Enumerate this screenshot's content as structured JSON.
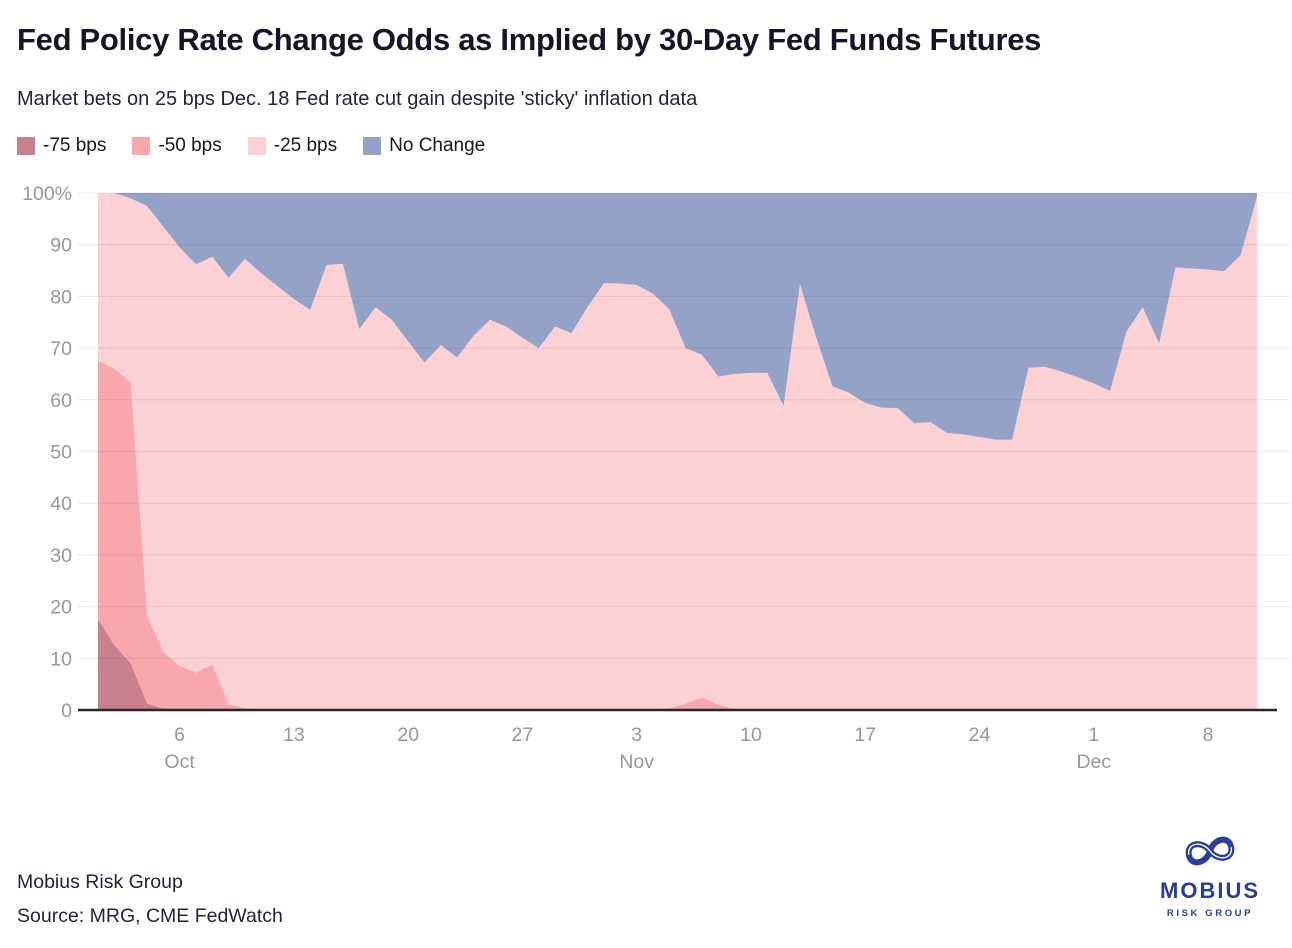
{
  "header": {
    "title": "Fed Policy Rate Change Odds as Implied by 30-Day Fed Funds Futures",
    "subtitle": "Market bets on 25 bps Dec. 18 Fed rate cut gain despite 'sticky' inflation data"
  },
  "legend": {
    "position": "top-left",
    "items": [
      {
        "label": "-75 bps",
        "color": "#c8808f"
      },
      {
        "label": "-50 bps",
        "color": "#f8a7ac"
      },
      {
        "label": "-25 bps",
        "color": "#fcd1d4"
      },
      {
        "label": "No Change",
        "color": "#94a2c8"
      }
    ]
  },
  "chart_data": {
    "type": "area",
    "stacked": true,
    "title": "Fed Policy Rate Change Odds as Implied by 30-Day Fed Funds Futures",
    "xlabel": "",
    "ylabel": "",
    "ylim": [
      0,
      100
    ],
    "grid": true,
    "legend_position": "top-left",
    "y_ticks": [
      0,
      10,
      20,
      30,
      40,
      50,
      60,
      70,
      80,
      90,
      100
    ],
    "y_top_tick_label": "100%",
    "x_dates": [
      "Oct 1",
      "Oct 2",
      "Oct 3",
      "Oct 4",
      "Oct 5",
      "Oct 6",
      "Oct 7",
      "Oct 8",
      "Oct 9",
      "Oct 10",
      "Oct 11",
      "Oct 12",
      "Oct 13",
      "Oct 14",
      "Oct 15",
      "Oct 16",
      "Oct 17",
      "Oct 18",
      "Oct 19",
      "Oct 20",
      "Oct 21",
      "Oct 22",
      "Oct 23",
      "Oct 24",
      "Oct 25",
      "Oct 26",
      "Oct 27",
      "Oct 28",
      "Oct 29",
      "Oct 30",
      "Oct 31",
      "Nov 1",
      "Nov 2",
      "Nov 3",
      "Nov 4",
      "Nov 5",
      "Nov 6",
      "Nov 7",
      "Nov 8",
      "Nov 9",
      "Nov 10",
      "Nov 11",
      "Nov 12",
      "Nov 13",
      "Nov 14",
      "Nov 15",
      "Nov 16",
      "Nov 17",
      "Nov 18",
      "Nov 19",
      "Nov 20",
      "Nov 21",
      "Nov 22",
      "Nov 23",
      "Nov 24",
      "Nov 25",
      "Nov 26",
      "Nov 27",
      "Nov 28",
      "Nov 29",
      "Nov 30",
      "Dec 1",
      "Dec 2",
      "Dec 3",
      "Dec 4",
      "Dec 5",
      "Dec 6",
      "Dec 7",
      "Dec 8",
      "Dec 9",
      "Dec 10",
      "Dec 11"
    ],
    "x_ticks": [
      {
        "index": 5,
        "label": "6",
        "month": "Oct"
      },
      {
        "index": 12,
        "label": "13"
      },
      {
        "index": 19,
        "label": "20"
      },
      {
        "index": 26,
        "label": "27"
      },
      {
        "index": 33,
        "label": "3",
        "month": "Nov"
      },
      {
        "index": 40,
        "label": "10"
      },
      {
        "index": 47,
        "label": "17"
      },
      {
        "index": 54,
        "label": "24"
      },
      {
        "index": 61,
        "label": "1",
        "month": "Dec"
      },
      {
        "index": 68,
        "label": "8"
      }
    ],
    "series": [
      {
        "name": "-75 bps",
        "color": "#c8808f",
        "values": [
          17.5,
          12.5,
          9,
          1.2,
          0.2,
          0,
          0,
          0,
          0,
          0,
          0,
          0,
          0,
          0,
          0,
          0,
          0,
          0,
          0,
          0,
          0,
          0,
          0,
          0,
          0,
          0,
          0,
          0,
          0,
          0,
          0,
          0,
          0,
          0,
          0,
          0,
          0,
          0,
          0,
          0,
          0,
          0,
          0,
          0,
          0,
          0,
          0,
          0,
          0,
          0,
          0,
          0,
          0,
          0,
          0,
          0,
          0,
          0,
          0,
          0,
          0,
          0,
          0,
          0,
          0,
          0,
          0,
          0,
          0,
          0,
          0,
          0
        ]
      },
      {
        "name": "-50 bps",
        "color": "#f8a7ac",
        "values": [
          50,
          53.5,
          54.5,
          17,
          11,
          8.5,
          7.2,
          8.8,
          1,
          0.3,
          0,
          0,
          0,
          0,
          0,
          0,
          0,
          0,
          0,
          0,
          0,
          0,
          0,
          0,
          0,
          0,
          0,
          0,
          0,
          0,
          0,
          0,
          0,
          0,
          0,
          0.3,
          1.2,
          2.4,
          1,
          0.2,
          0,
          0,
          0,
          0,
          0,
          0,
          0,
          0,
          0,
          0,
          0,
          0,
          0,
          0,
          0,
          0,
          0,
          0,
          0,
          0,
          0,
          0,
          0,
          0,
          0,
          0,
          0,
          0,
          0,
          0,
          0,
          0
        ]
      },
      {
        "name": "-25 bps",
        "color": "#fcd1d4",
        "values": [
          32.5,
          34,
          35.5,
          79.3,
          82.3,
          81,
          79,
          78.9,
          82.6,
          87,
          84.5,
          82,
          79.5,
          77.4,
          86.1,
          86.3,
          73.7,
          77.9,
          75.5,
          71.3,
          67.2,
          70.6,
          68.2,
          72.4,
          75.5,
          74.2,
          72,
          70,
          74.2,
          72.9,
          78,
          82.6,
          82.5,
          82.2,
          80.5,
          77.2,
          68.8,
          66.3,
          63.5,
          64.8,
          65.2,
          65.2,
          58.9,
          82.4,
          72,
          62.6,
          61.4,
          59.4,
          58.5,
          58.4,
          55.5,
          55.7,
          53.6,
          53.3,
          52.8,
          52.3,
          52.3,
          66.2,
          66.4,
          65.5,
          64.4,
          63.2,
          61.7,
          73.2,
          77.9,
          70.9,
          85.6,
          85.4,
          85.2,
          84.9,
          88,
          99.3
        ]
      },
      {
        "name": "No Change",
        "color": "#94a2c8",
        "values": [
          0,
          0,
          1,
          2.5,
          6.5,
          10.5,
          13.8,
          12.3,
          16.4,
          12.7,
          15.5,
          18,
          20.5,
          22.6,
          13.9,
          13.7,
          26.3,
          22.1,
          24.5,
          28.7,
          32.8,
          29.4,
          31.8,
          27.6,
          24.5,
          25.8,
          28,
          30,
          25.8,
          27.1,
          22,
          17.4,
          17.5,
          17.8,
          19.5,
          22.5,
          30,
          31.3,
          35.5,
          35,
          34.8,
          34.8,
          41.1,
          17.6,
          28,
          37.4,
          38.6,
          40.6,
          41.5,
          41.6,
          44.5,
          44.3,
          46.4,
          46.7,
          47.2,
          47.7,
          47.7,
          33.8,
          33.6,
          34.5,
          35.6,
          36.8,
          38.3,
          26.8,
          22.1,
          29.1,
          14.4,
          14.6,
          14.8,
          15.1,
          12,
          0.7
        ]
      }
    ]
  },
  "footer": {
    "company": "Mobius Risk Group",
    "source": "Source: MRG, CME FedWatch"
  },
  "logo": {
    "name": "MOBIUS",
    "tagline": "RISK GROUP",
    "color": "#2a3e93",
    "icon": "infinity-icon"
  },
  "colors": {
    "axis": "#24272e",
    "tick_label": "#97979b",
    "grid": "rgba(80,80,100,0.13)"
  }
}
